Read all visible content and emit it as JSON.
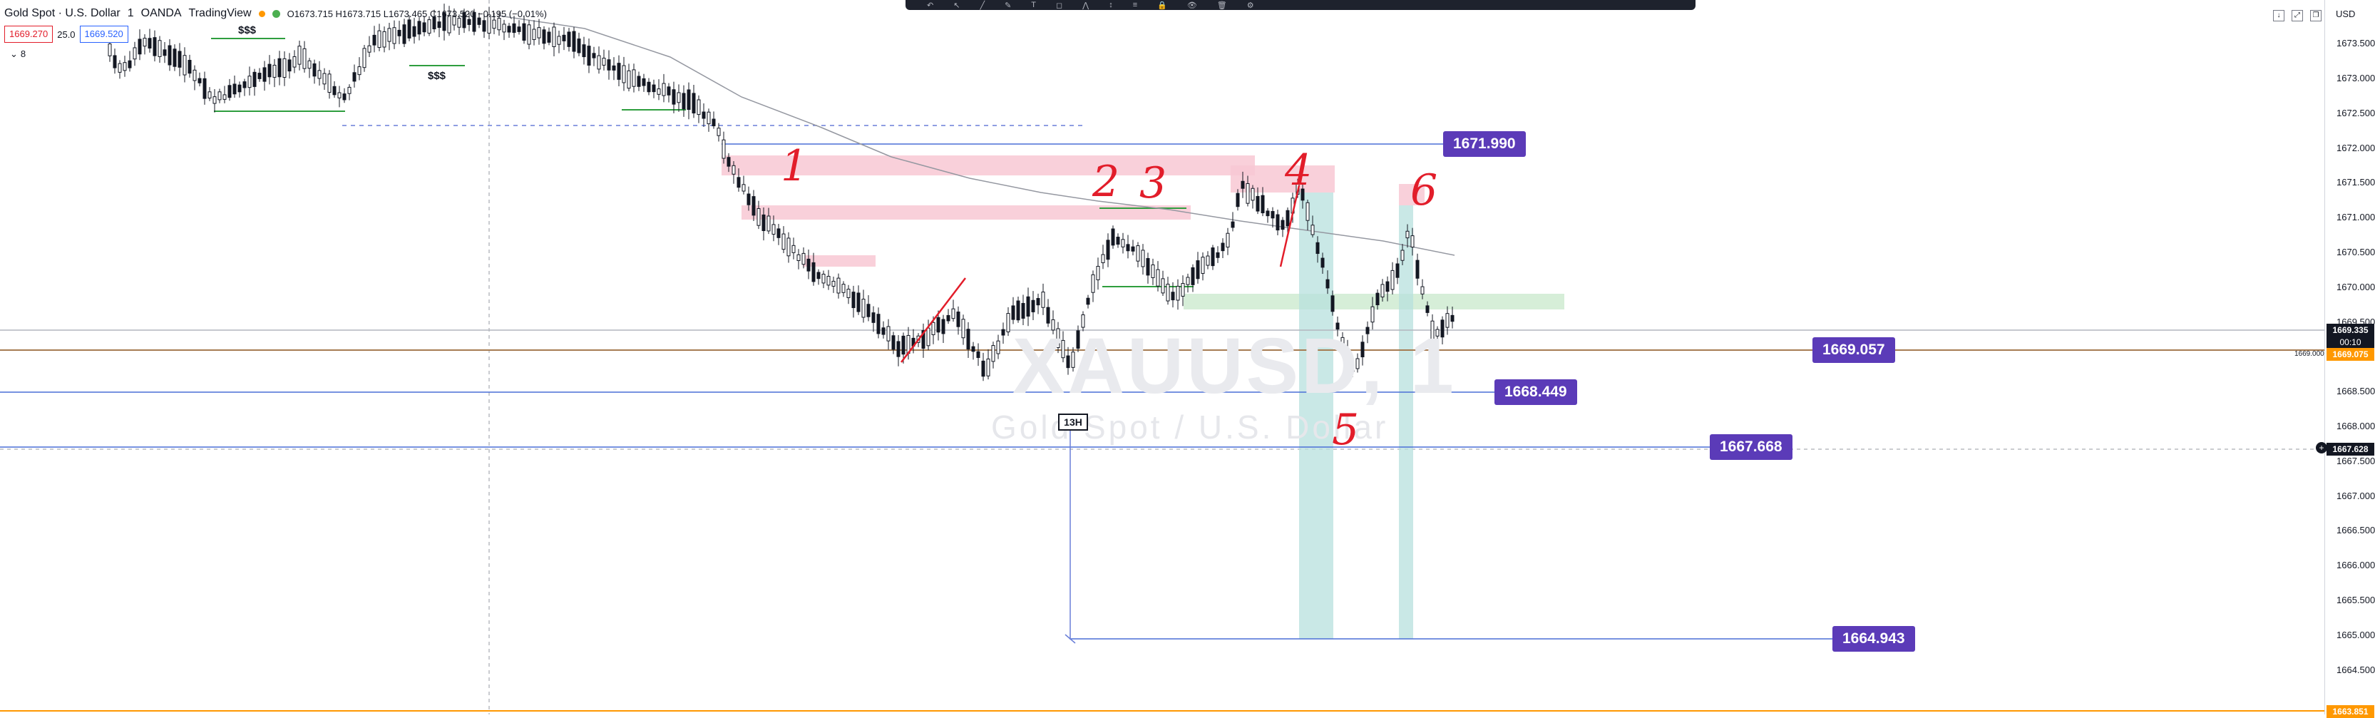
{
  "legend": {
    "symbol": "Gold Spot · U.S. Dollar",
    "interval": "1",
    "broker": "OANDA",
    "platform": "TradingView",
    "ohlc": "O1673.715 H1673.715 L1673.465 C1673.520 −0.195 (−0.01%)"
  },
  "price_boxes": {
    "sell": "1669.270",
    "spread": "25.0",
    "buy": "1669.520",
    "indicator_count": "8"
  },
  "currency": "USD",
  "watermark": {
    "ticker": "XAUUSD, 1",
    "name": "Gold Spot / U.S. Dollar"
  },
  "price_axis": [
    "1673.500",
    "1673.000",
    "1672.500",
    "1672.000",
    "1671.500",
    "1671.000",
    "1670.500",
    "1670.000",
    "1669.500",
    "1668.500",
    "1668.000",
    "1667.500",
    "1667.000",
    "1666.500",
    "1666.000",
    "1665.500",
    "1665.000",
    "1664.500"
  ],
  "scale_tags": {
    "last_price": "1669.335",
    "countdown": "00:10",
    "orange_price": "1669.075",
    "line_price": "1669.000",
    "crosshair_price": "1667.628",
    "bottom_price": "1663.851"
  },
  "level_badges": {
    "b1": "1671.990",
    "b2": "1669.057",
    "b3": "1668.449",
    "b4": "1667.668",
    "b5": "1664.943"
  },
  "time_marker": "13H",
  "annotations": {
    "n1": "1",
    "n2": "2",
    "n3": "3",
    "n4": "4",
    "n5": "5",
    "n6": "6"
  },
  "liquidity_marks": {
    "a": "$$$",
    "b": "$$$"
  },
  "colors": {
    "up": "#131722",
    "down": "#131722",
    "accent": "#5b3bb8",
    "resistance_zone": "#f8c8d4",
    "support_zone": "#d2ecd4",
    "position_zone": "#b7e0dd",
    "orange_line": "#ff9800",
    "blue_line": "#4a6fd6"
  }
}
